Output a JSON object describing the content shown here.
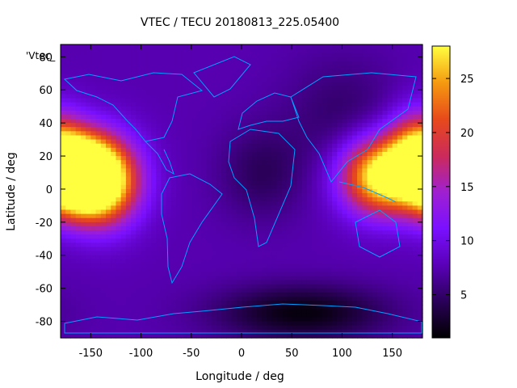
{
  "chart_data": {
    "type": "heatmap",
    "title": "VTEC / TECU 20180813_225.05400",
    "xlabel": "Longitude / deg",
    "ylabel": "Latitude / deg",
    "plot_label": "'Vtec_",
    "xlim": [
      -180,
      180
    ],
    "ylim": [
      -90,
      87.5
    ],
    "xticks": [
      -150,
      -100,
      -50,
      0,
      50,
      100,
      150
    ],
    "yticks": [
      -80,
      -60,
      -40,
      -20,
      0,
      20,
      40,
      60,
      80
    ],
    "colorbar": {
      "range": [
        1,
        28
      ],
      "ticks": [
        5,
        10,
        15,
        20,
        25
      ],
      "palette": [
        "#000000",
        "#2a0058",
        "#5a00b8",
        "#7a10ff",
        "#a020d0",
        "#cc2a5a",
        "#e84a1a",
        "#f59a10",
        "#ffff40"
      ]
    },
    "grid": {
      "lon_step": 5,
      "lat_step": 2.5,
      "background_tecu": 7.5,
      "features": [
        {
          "lon": -160,
          "lat": 8,
          "peak_tecu": 27,
          "lon_width": 22,
          "lat_width": 16
        },
        {
          "lon": -135,
          "lat": 5,
          "peak_tecu": 20,
          "lon_width": 25,
          "lat_width": 18
        },
        {
          "lon": 140,
          "lat": 8,
          "peak_tecu": 23,
          "lon_width": 28,
          "lat_width": 16
        },
        {
          "lon": 175,
          "lat": 20,
          "peak_tecu": 16,
          "lon_width": 20,
          "lat_width": 18
        },
        {
          "lon": 60,
          "lat": -75,
          "peak_tecu": -6,
          "lon_width": 60,
          "lat_width": 12
        },
        {
          "lon": 20,
          "lat": 10,
          "peak_tecu": -3,
          "lon_width": 30,
          "lat_width": 20
        },
        {
          "lon": 100,
          "lat": 45,
          "peak_tecu": -2.5,
          "lon_width": 40,
          "lat_width": 25
        }
      ]
    },
    "coastline_color": "#00a0ff"
  }
}
